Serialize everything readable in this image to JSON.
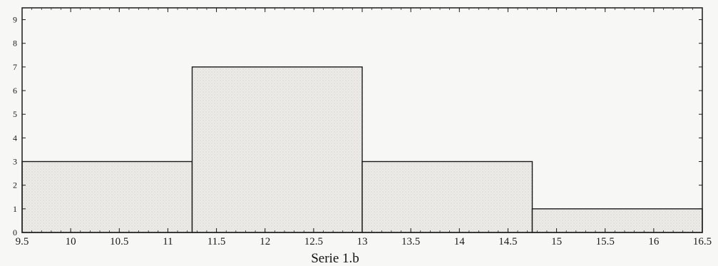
{
  "chart_data": {
    "type": "bar",
    "title": "",
    "xlabel": "Serie  1.b",
    "ylabel": "",
    "bins": [
      {
        "from": 9.5,
        "to": 11.25,
        "count": 3
      },
      {
        "from": 11.25,
        "to": 13.0,
        "count": 7
      },
      {
        "from": 13.0,
        "to": 14.75,
        "count": 3
      },
      {
        "from": 14.75,
        "to": 16.5,
        "count": 1
      }
    ],
    "x_ticks": [
      9.5,
      10,
      10.5,
      11,
      11.5,
      12,
      12.5,
      13,
      13.5,
      14,
      14.5,
      15,
      15.5,
      16,
      16.5
    ],
    "x_tick_labels": [
      "9.5",
      "10",
      "10.5",
      "11",
      "11.5",
      "12",
      "12.5",
      "13",
      "13.5",
      "14",
      "14.5",
      "15",
      "15.5",
      "16",
      "16.5"
    ],
    "y_ticks": [
      0,
      1,
      2,
      3,
      4,
      5,
      6,
      7,
      8,
      9
    ],
    "y_tick_labels": [
      "0",
      "1",
      "2",
      "3",
      "4",
      "5",
      "6",
      "7",
      "8",
      "9"
    ],
    "xlim": [
      9.5,
      16.5
    ],
    "ylim": [
      0,
      9.5
    ],
    "grid": false,
    "colors": {
      "bar_fill": "#ecebe8",
      "bar_stroke": "#1a1a1a",
      "axis": "#1a1a1a"
    }
  }
}
